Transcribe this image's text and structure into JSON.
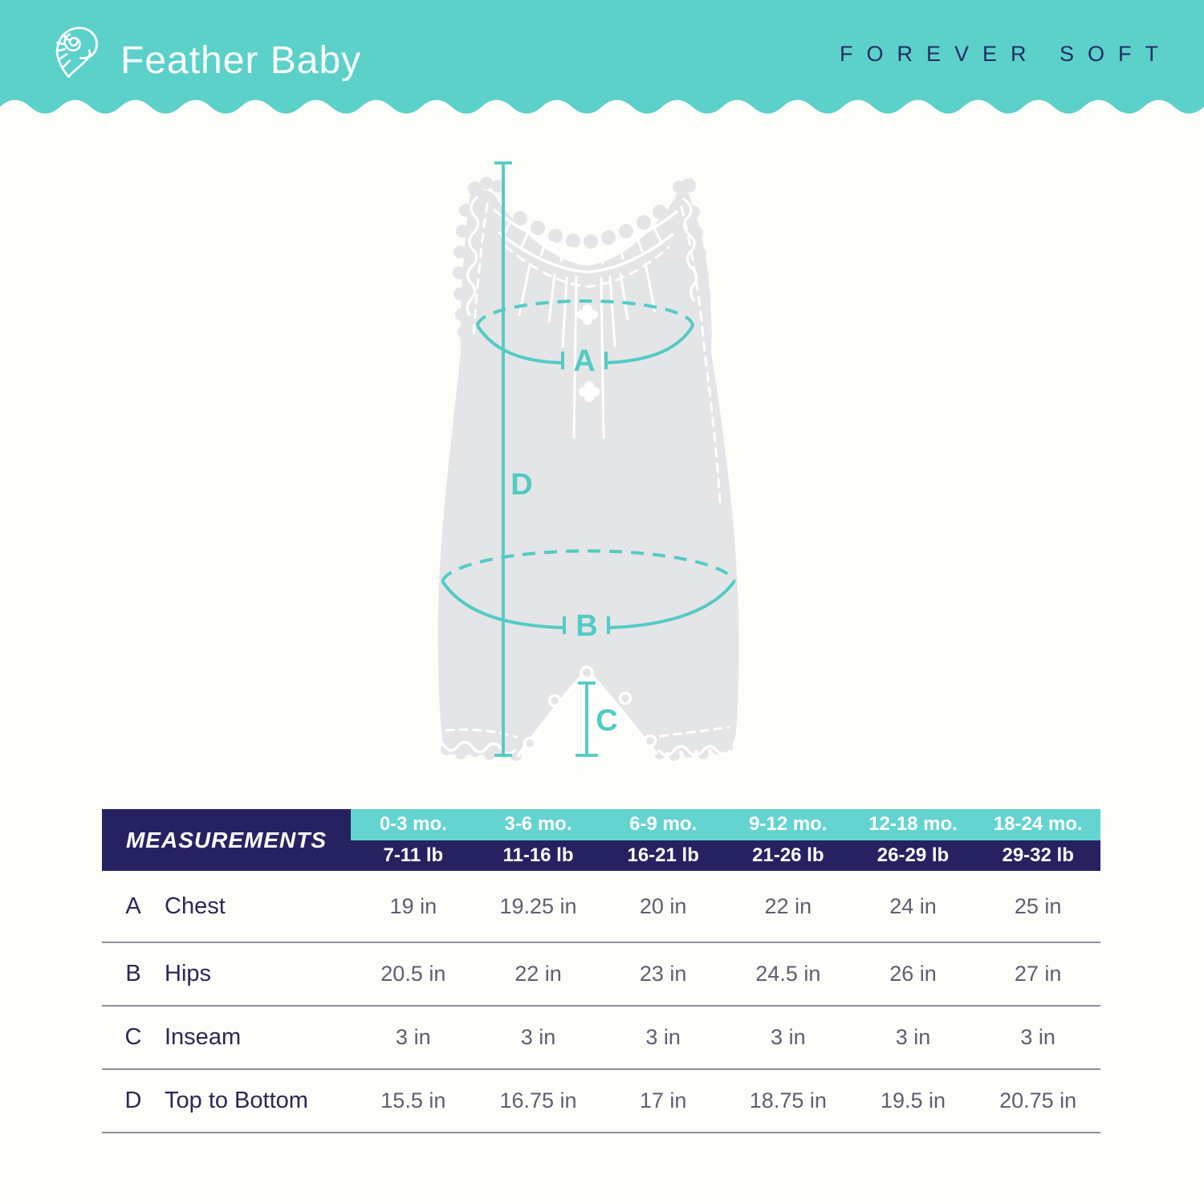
{
  "header": {
    "brand": "Feather Baby",
    "tagline": "FOREVER SOFT",
    "logo_icon": "nautilus-shell-heart"
  },
  "colors": {
    "teal": "#5BD1CA",
    "table_teal": "#63D4CF",
    "navy": "#262262",
    "tagline_text": "#242C63",
    "annotation_teal": "#52CBC4",
    "garment_gray": "#E4E5E7",
    "value_text": "#5E5F70",
    "label_text": "#2B2857",
    "divider": "#918F99",
    "page_bg": "#FDFDF9"
  },
  "diagram": {
    "subject": "sleeveless baby romper with ruffle trim",
    "measure_labels": {
      "A": "A",
      "B": "B",
      "C": "C",
      "D": "D"
    }
  },
  "table": {
    "title": "MEASUREMENTS",
    "age_columns": [
      "0-3 mo.",
      "3-6 mo.",
      "6-9 mo.",
      "9-12 mo.",
      "12-18 mo.",
      "18-24 mo."
    ],
    "weight_columns": [
      "7-11 lb",
      "11-16 lb",
      "16-21 lb",
      "21-26 lb",
      "26-29 lb",
      "29-32 lb"
    ],
    "rows": [
      {
        "letter": "A",
        "label": "Chest",
        "values": [
          "19 in",
          "19.25 in",
          "20 in",
          "22 in",
          "24 in",
          "25 in"
        ]
      },
      {
        "letter": "B",
        "label": "Hips",
        "values": [
          "20.5 in",
          "22 in",
          "23 in",
          "24.5 in",
          "26 in",
          "27 in"
        ]
      },
      {
        "letter": "C",
        "label": "Inseam",
        "values": [
          "3 in",
          "3 in",
          "3 in",
          "3 in",
          "3 in",
          "3 in"
        ]
      },
      {
        "letter": "D",
        "label": "Top to Bottom",
        "values": [
          "15.5 in",
          "16.75 in",
          "17 in",
          "18.75 in",
          "19.5 in",
          "20.75 in"
        ]
      }
    ]
  }
}
